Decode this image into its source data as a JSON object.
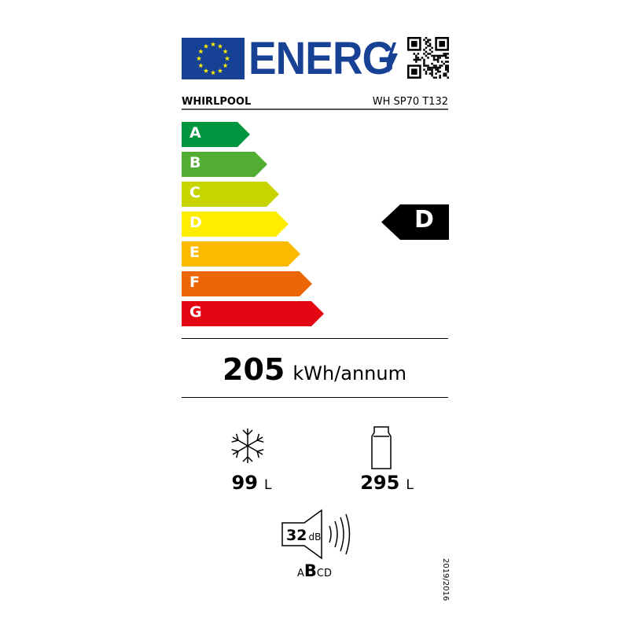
{
  "header": {
    "logo_text": "ENERG",
    "flag_icon": "eu-flag-icon",
    "qr_icon": "qr-code-icon"
  },
  "supplier": "WHIRLPOOL",
  "model": "WH SP70 T132",
  "scale": [
    {
      "label": "A",
      "color": "#009640"
    },
    {
      "label": "B",
      "color": "#52ae32"
    },
    {
      "label": "C",
      "color": "#c8d400"
    },
    {
      "label": "D",
      "color": "#ffed00"
    },
    {
      "label": "E",
      "color": "#fbba00"
    },
    {
      "label": "F",
      "color": "#ec6608"
    },
    {
      "label": "G",
      "color": "#e30613"
    }
  ],
  "rating": "D",
  "energy": {
    "value": "205",
    "unit": "kWh/annum"
  },
  "freezer": {
    "value": "99",
    "unit": "L"
  },
  "fridge": {
    "value": "295",
    "unit": "L"
  },
  "noise": {
    "value": "32",
    "unit": "dB",
    "classes": {
      "pre": "A",
      "active": "B",
      "post": "CD"
    }
  },
  "regulation": "2019/2016"
}
